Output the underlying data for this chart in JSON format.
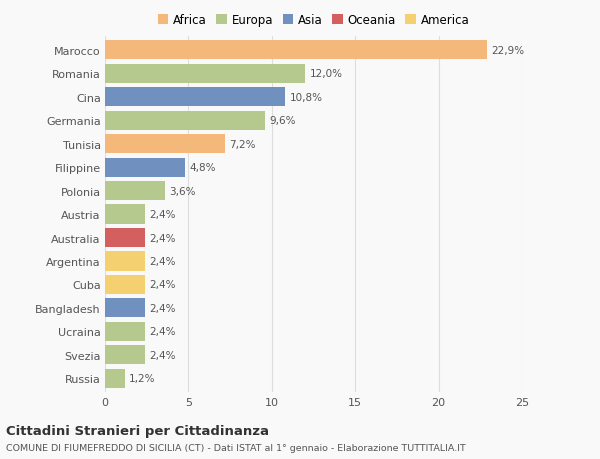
{
  "countries": [
    "Marocco",
    "Romania",
    "Cina",
    "Germania",
    "Tunisia",
    "Filippine",
    "Polonia",
    "Austria",
    "Australia",
    "Argentina",
    "Cuba",
    "Bangladesh",
    "Ucraina",
    "Svezia",
    "Russia"
  ],
  "values": [
    22.9,
    12.0,
    10.8,
    9.6,
    7.2,
    4.8,
    3.6,
    2.4,
    2.4,
    2.4,
    2.4,
    2.4,
    2.4,
    2.4,
    1.2
  ],
  "labels": [
    "22,9%",
    "12,0%",
    "10,8%",
    "9,6%",
    "7,2%",
    "4,8%",
    "3,6%",
    "2,4%",
    "2,4%",
    "2,4%",
    "2,4%",
    "2,4%",
    "2,4%",
    "2,4%",
    "1,2%"
  ],
  "colors": [
    "#f4b97a",
    "#b5c98e",
    "#7090c0",
    "#b5c98e",
    "#f4b97a",
    "#7090c0",
    "#b5c98e",
    "#b5c98e",
    "#d45f5f",
    "#f4d070",
    "#f4d070",
    "#7090c0",
    "#b5c98e",
    "#b5c98e",
    "#b5c98e"
  ],
  "continent_colors": {
    "Africa": "#f4b97a",
    "Europa": "#b5c98e",
    "Asia": "#7090c0",
    "Oceania": "#d45f5f",
    "America": "#f4d070"
  },
  "xlim": [
    0,
    25
  ],
  "xticks": [
    0,
    5,
    10,
    15,
    20,
    25
  ],
  "title": "Cittadini Stranieri per Cittadinanza",
  "subtitle": "COMUNE DI FIUMEFREDDO DI SICILIA (CT) - Dati ISTAT al 1° gennaio - Elaborazione TUTTITALIA.IT",
  "background_color": "#f9f9f9",
  "bar_height": 0.82,
  "grid_color": "#dddddd",
  "text_color": "#555555"
}
